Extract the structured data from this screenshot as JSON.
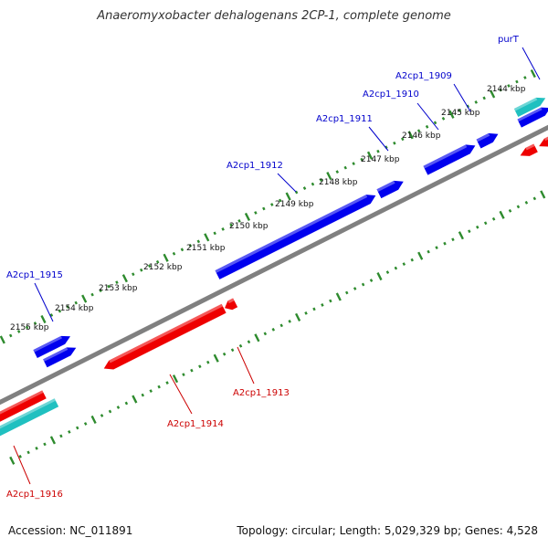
{
  "title": "Anaeromyxobacter dehalogenans 2CP-1, complete genome",
  "footer": {
    "accession": "Accession: NC_011891",
    "summary": "Topology: circular; Length: 5,029,329 bp; Genes: 4,528"
  },
  "colors": {
    "backbone": "#808080",
    "tick": "#2e8b2e",
    "forward_gene": "#0000ee",
    "reverse_gene": "#ee0000",
    "rna_gene": "#20c0c0",
    "forward_label": "#0000cc",
    "reverse_label": "#cc0000"
  },
  "scale_labels": [
    "2144 kbp",
    "2145 kbp",
    "2146 kbp",
    "2147 kbp",
    "2148 kbp",
    "2149 kbp",
    "2150 kbp",
    "2151 kbp",
    "2152 kbp",
    "2153 kbp",
    "2154 kbp",
    "2155 kbp"
  ],
  "genes": [
    {
      "label": "purT",
      "strand": "forward",
      "type": "rna"
    },
    {
      "label": "A2cp1_1909",
      "strand": "forward",
      "type": "cds"
    },
    {
      "label": "A2cp1_1910",
      "strand": "forward",
      "type": "cds"
    },
    {
      "label": "A2cp1_1911",
      "strand": "forward",
      "type": "cds"
    },
    {
      "label": "A2cp1_1912",
      "strand": "forward",
      "type": "cds"
    },
    {
      "label": "A2cp1_1913",
      "strand": "reverse",
      "type": "cds"
    },
    {
      "label": "A2cp1_1914",
      "strand": "reverse",
      "type": "cds"
    },
    {
      "label": "A2cp1_1915",
      "strand": "forward",
      "type": "cds"
    },
    {
      "label": "A2cp1_1916",
      "strand": "reverse",
      "type": "rna"
    }
  ]
}
